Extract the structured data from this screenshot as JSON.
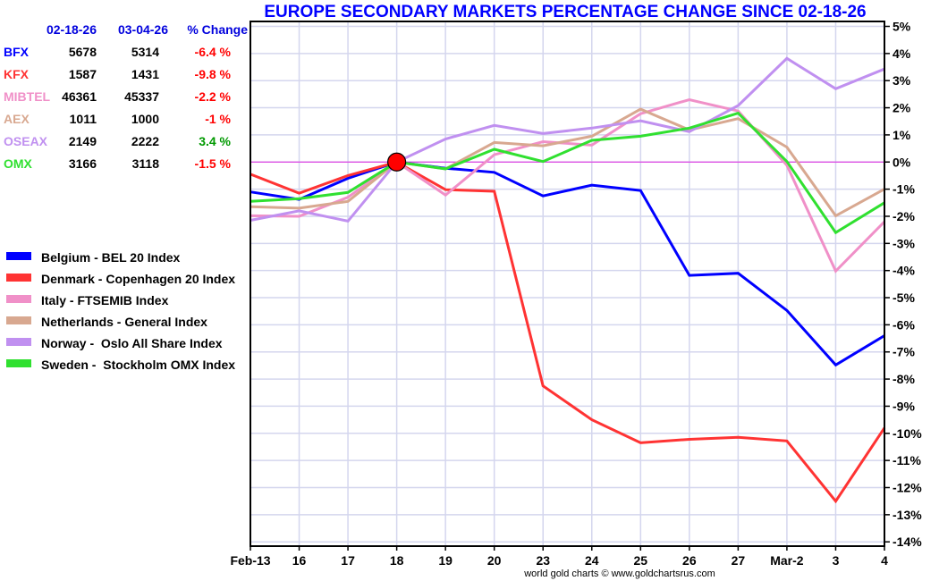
{
  "chart_data": {
    "type": "line",
    "title": "EUROPE SECONDARY MARKETS PERCENTAGE CHANGE SINCE 02-18-26",
    "xlabel": "",
    "ylabel": "",
    "ylim": [
      -14,
      5
    ],
    "y_ticks": [
      5,
      4,
      3,
      2,
      1,
      0,
      -1,
      -2,
      -3,
      -4,
      -5,
      -6,
      -7,
      -8,
      -9,
      -10,
      -11,
      -12,
      -13,
      -14
    ],
    "y_tick_labels": [
      "5%",
      "4%",
      "3%",
      "2%",
      "1%",
      "0%",
      "-1%",
      "-2%",
      "-3%",
      "-4%",
      "-5%",
      "-6%",
      "-7%",
      "-8%",
      "-9%",
      "-10%",
      "-11%",
      "-12%",
      "-13%",
      "-14%"
    ],
    "grid": true,
    "categories": [
      "Feb-13",
      "16",
      "17",
      "18",
      "19",
      "20",
      "23",
      "24",
      "25",
      "26",
      "27",
      "Mar-2",
      "3",
      "4"
    ],
    "reference_line": {
      "value": 0,
      "color": "#e020e0"
    },
    "base_marker": {
      "category": "18",
      "value": 0,
      "color": "#ff0000"
    },
    "legend_position": "left",
    "series": [
      {
        "name": "Belgium - BEL 20 Index",
        "color": "#0000ff",
        "values": [
          -1.1,
          -1.38,
          -0.6,
          0,
          -0.23,
          -0.38,
          -1.25,
          -0.85,
          -1.05,
          -4.18,
          -4.1,
          -5.47,
          -7.48,
          -6.4
        ]
      },
      {
        "name": "Denmark - Copenhagen 20 Index",
        "color": "#ff3333",
        "values": [
          -0.45,
          -1.15,
          -0.5,
          0,
          -1.02,
          -1.08,
          -8.25,
          -9.5,
          -10.35,
          -10.22,
          -10.15,
          -10.28,
          -12.5,
          -9.8
        ]
      },
      {
        "name": "Italy - FTSEMIB Index",
        "color": "#f090c8",
        "values": [
          -1.98,
          -2.0,
          -1.3,
          0,
          -1.22,
          0.27,
          0.75,
          0.62,
          1.78,
          2.3,
          1.88,
          -0.12,
          -4.02,
          -2.2
        ]
      },
      {
        "name": "Netherlands - General Index",
        "color": "#d8a890",
        "values": [
          -1.65,
          -1.7,
          -1.45,
          0,
          -0.25,
          0.72,
          0.6,
          0.95,
          1.95,
          1.18,
          1.6,
          0.55,
          -1.98,
          -1.0
        ]
      },
      {
        "name": "Norway -  Oslo All Share Index",
        "color": "#c090f0",
        "values": [
          -2.15,
          -1.8,
          -2.18,
          0,
          0.85,
          1.35,
          1.05,
          1.25,
          1.52,
          1.12,
          2.08,
          3.82,
          2.7,
          3.43
        ]
      },
      {
        "name": "Sweden -  Stockholm OMX Index",
        "color": "#30e030",
        "values": [
          -1.45,
          -1.35,
          -1.12,
          0,
          -0.25,
          0.47,
          0.02,
          0.8,
          0.95,
          1.25,
          1.8,
          0.02,
          -2.6,
          -1.5
        ]
      }
    ]
  },
  "table": {
    "headers": [
      "02-18-26",
      "03-04-26",
      "% Change"
    ],
    "rows": [
      {
        "symbol": "BFX",
        "symbol_color": "#0000ff",
        "start": "5678",
        "end": "5314",
        "change": "-6.4 %",
        "change_color": "#ff0000"
      },
      {
        "symbol": "KFX",
        "symbol_color": "#ff3333",
        "start": "1587",
        "end": "1431",
        "change": "-9.8 %",
        "change_color": "#ff0000"
      },
      {
        "symbol": "MIBTEL",
        "symbol_color": "#f090c8",
        "start": "46361",
        "end": "45337",
        "change": "-2.2 %",
        "change_color": "#ff0000"
      },
      {
        "symbol": "AEX",
        "symbol_color": "#d8a890",
        "start": "1011",
        "end": "1000",
        "change": "-1 %",
        "change_color": "#ff0000"
      },
      {
        "symbol": "OSEAX",
        "symbol_color": "#c090f0",
        "start": "2149",
        "end": "2222",
        "change": "3.4 %",
        "change_color": "#009900"
      },
      {
        "symbol": "OMX",
        "symbol_color": "#30e030",
        "start": "3166",
        "end": "3118",
        "change": "-1.5 %",
        "change_color": "#ff0000"
      }
    ]
  },
  "credit": "world gold charts © www.goldchartsrus.com"
}
